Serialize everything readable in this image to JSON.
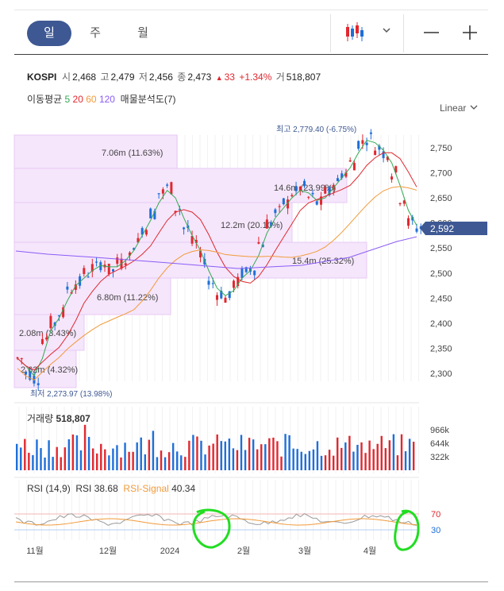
{
  "tabs": {
    "day": "일",
    "week": "주",
    "month": "월"
  },
  "quote": {
    "symbol": "KOSPI",
    "open_label": "시",
    "open": "2,468",
    "high_label": "고",
    "high": "2,479",
    "low_label": "저",
    "low": "2,456",
    "close_label": "종",
    "close": "2,473",
    "change_arrow": "▲",
    "change": "33",
    "change_pct": "+1.34%",
    "volume_label": "거",
    "volume": "518,807"
  },
  "ma": {
    "label": "이동평균",
    "p5": "5",
    "p20": "20",
    "p60": "60",
    "p120": "120",
    "profile_label": "매물분석도(7)",
    "colors": {
      "p5": "#34a853",
      "p20": "#e0282f",
      "p60": "#f29a3a",
      "p120": "#8b5cf6"
    }
  },
  "scale_label": "Linear",
  "price_axis": {
    "ticks": [
      "2,750",
      "2,700",
      "2,650",
      "2,600",
      "2,550",
      "2,500",
      "2,450",
      "2,400",
      "2,350",
      "2,300"
    ],
    "current": "2,592"
  },
  "annotations": {
    "high": "최고 2,779.40 (-6.75%)",
    "low": "최저 2,273.97 (13.98%)"
  },
  "volume_profile": [
    {
      "label": "7.06m (11.63%)"
    },
    {
      "label": "14.6m (23.99%)"
    },
    {
      "label": "12.2m (20.10%)"
    },
    {
      "label": "15.4m (25.32%)"
    },
    {
      "label": "6.80m (11.22%)"
    },
    {
      "label": "2.08m (3.43%)"
    },
    {
      "label": "2.62m (4.32%)"
    }
  ],
  "volume_panel": {
    "label": "거래량",
    "value": "518,807",
    "ticks": [
      "966k",
      "644k",
      "322k"
    ]
  },
  "rsi_panel": {
    "params": "RSI (14,9)",
    "rsi_label": "RSI",
    "rsi_value": "38.68",
    "signal_label": "RSI-Signal",
    "signal_value": "40.34",
    "levels": [
      "70",
      "30"
    ]
  },
  "x_axis": [
    "11월",
    "12월",
    "2024",
    "2월",
    "3월",
    "4월"
  ],
  "colors": {
    "accent": "#3e5893",
    "up": "#e0282f",
    "down": "#1e6fd9",
    "profile": "#f5e6fb",
    "annotation_circle": "#22dd22"
  }
}
